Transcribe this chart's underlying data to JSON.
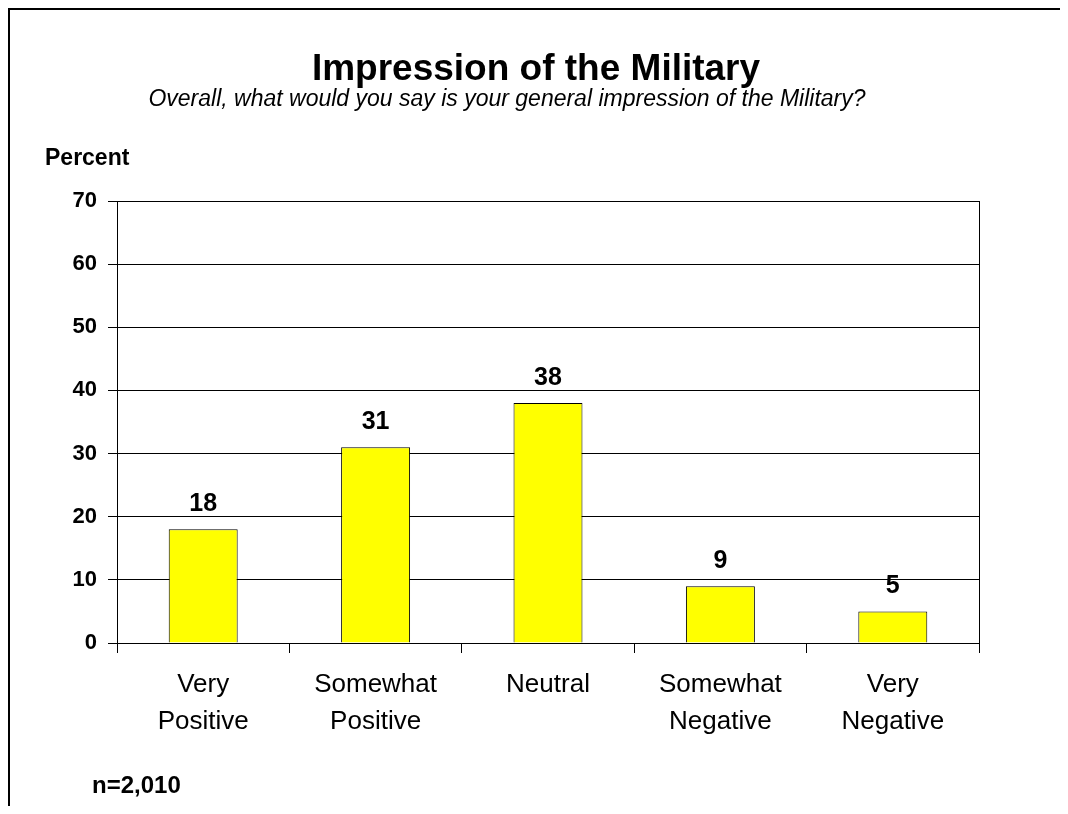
{
  "chart_data": {
    "type": "bar",
    "title": "Impression of the Military",
    "subtitle": "Overall, what would you say is your general impression of the Military?",
    "ylabel": "Percent",
    "categories": [
      "Very Positive",
      "Somewhat Positive",
      "Neutral",
      "Somewhat Negative",
      "Very Negative"
    ],
    "values": [
      18,
      31,
      38,
      9,
      5
    ],
    "color": "#ffff00",
    "ylim": [
      0,
      70
    ],
    "yticks": [
      0,
      10,
      20,
      30,
      40,
      50,
      60,
      70
    ],
    "grid": "y",
    "data_labels": true,
    "annotations": [
      "n=2,010"
    ]
  }
}
